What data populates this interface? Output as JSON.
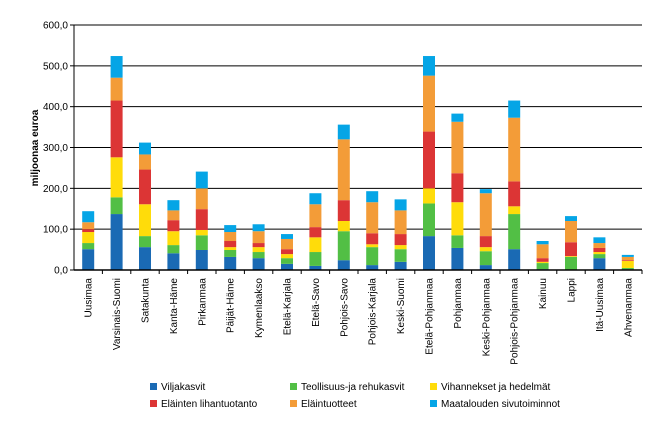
{
  "chart_data": {
    "type": "bar",
    "stacked": true,
    "ylabel": "miljoonaa euroa",
    "ylim": [
      0,
      600
    ],
    "yticks": [
      "0,0",
      "100,0",
      "200,0",
      "300,0",
      "400,0",
      "500,0",
      "600,0"
    ],
    "grid": true,
    "legend_position": "bottom",
    "categories": [
      "Uusimaa",
      "Varsinais-Suomi",
      "Satakunta",
      "Kanta-Häme",
      "Pirkanmaa",
      "Päijät-Häme",
      "Kymenlaakso",
      "Etelä-Karjala",
      "Etelä-Savo",
      "Pohjois-Savo",
      "Pohjois-Karjala",
      "Keski-Suomi",
      "Etelä-Pohjanmaa",
      "Pohjanmaa",
      "Keski-Pohjanmaa",
      "Pohjois-Pohjanmaa",
      "Kainuu",
      "Lappi",
      "Itä-Uusimaa",
      "Ahvenanmaa"
    ],
    "series": [
      {
        "name": "Viljakasvit",
        "color": "#1a6ab4",
        "values": [
          51,
          137,
          56,
          41,
          49,
          32,
          29,
          15,
          10,
          24,
          12,
          20,
          83,
          54,
          12,
          51,
          2,
          0,
          29,
          2
        ]
      },
      {
        "name": "Teollisuus-ja rehukasvit",
        "color": "#52bf45",
        "values": [
          15,
          41,
          27,
          20,
          36,
          17,
          15,
          14,
          34,
          71,
          44,
          31,
          80,
          31,
          34,
          86,
          15,
          32,
          10,
          3
        ]
      },
      {
        "name": "Vihannekset ja hedelmät",
        "color": "#ffdc0a",
        "values": [
          27,
          98,
          78,
          34,
          13,
          7,
          12,
          10,
          36,
          25,
          7,
          10,
          37,
          81,
          10,
          19,
          3,
          2,
          5,
          17
        ]
      },
      {
        "name": "Eläinten lihantuotanto",
        "color": "#dc3535",
        "values": [
          7,
          139,
          85,
          27,
          51,
          15,
          10,
          12,
          25,
          51,
          27,
          27,
          139,
          71,
          27,
          61,
          9,
          34,
          10,
          2
        ]
      },
      {
        "name": "Eläintuotteet",
        "color": "#f39c38",
        "values": [
          17,
          56,
          37,
          24,
          51,
          22,
          29,
          25,
          56,
          149,
          76,
          58,
          137,
          126,
          105,
          156,
          34,
          52,
          12,
          8
        ]
      },
      {
        "name": "Maatalouden sivutoiminnot",
        "color": "#05a5e6",
        "values": [
          27,
          53,
          29,
          25,
          41,
          17,
          17,
          12,
          27,
          36,
          27,
          27,
          48,
          20,
          10,
          42,
          8,
          12,
          14,
          5
        ]
      }
    ]
  }
}
